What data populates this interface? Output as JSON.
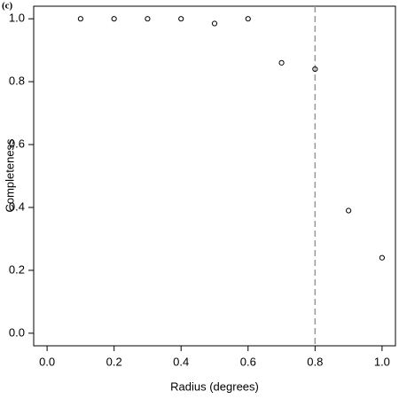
{
  "chart_data": {
    "type": "scatter",
    "panel_label": "(c)",
    "xlabel": "Radius (degrees)",
    "ylabel": "Completeness",
    "x": [
      0.1,
      0.2,
      0.3,
      0.4,
      0.5,
      0.6,
      0.7,
      0.8,
      0.9,
      1.0
    ],
    "series": [
      {
        "color": "#000000",
        "values": [
          1.0,
          1.0,
          1.0,
          1.0,
          0.985,
          1.0,
          0.86,
          0.84,
          0.39,
          0.24
        ]
      }
    ],
    "vline": {
      "x": 0.8,
      "color": "#999999"
    },
    "xlim": [
      -0.04,
      1.04
    ],
    "ylim": [
      -0.04,
      1.04
    ],
    "xticks": [
      {
        "value": 0,
        "label": "0.0"
      },
      0.2,
      0.4,
      0.6,
      0.8,
      {
        "value": 1,
        "label": "1.0"
      }
    ],
    "yticks": [
      {
        "value": 0,
        "label": "0.0"
      },
      0.2,
      0.4,
      0.6,
      0.8,
      {
        "value": 1,
        "label": "1.0"
      }
    ]
  }
}
